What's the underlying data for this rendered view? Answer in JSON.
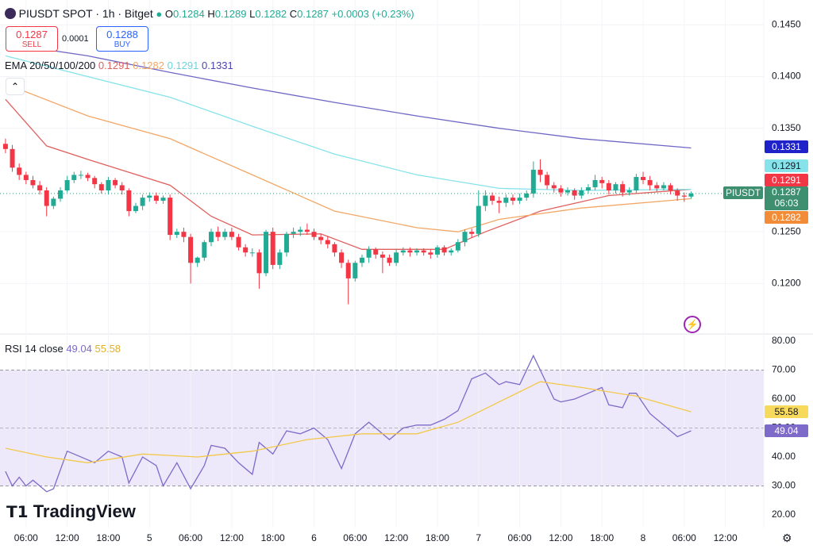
{
  "header": {
    "symbol": "PIUSDT SPOT · 1h · Bitget",
    "o_label": "O",
    "o": "0.1284",
    "h_label": "H",
    "h": "0.1289",
    "l_label": "L",
    "l": "0.1282",
    "c_label": "C",
    "c": "0.1287",
    "change": "+0.0003 (+0.23%)"
  },
  "trade": {
    "sell_price": "0.1287",
    "sell": "SELL",
    "spread": "0.0001",
    "buy_price": "0.1288",
    "buy": "BUY"
  },
  "ema_legend": {
    "label": "EMA 20/50/100/200",
    "values": [
      "0.1291",
      "0.1282",
      "0.1291",
      "0.1331"
    ]
  },
  "rsi_legend": {
    "label": "RSI 14 close",
    "values": [
      "49.04",
      "55.58"
    ]
  },
  "price_tag": {
    "symbol": "PIUSDT",
    "countdown": "06:03"
  },
  "brand": "TradingView",
  "chart_data": {
    "type": "candlestick",
    "up_color": "#22ab94",
    "down_color": "#f23645",
    "grid": true,
    "xlim": [
      -0.8,
      110.6
    ],
    "ylim": [
      0.1152,
      0.1474
    ],
    "last_price": 0.1287,
    "xticks": [
      {
        "value": 3,
        "label": "06:00"
      },
      {
        "value": 9,
        "label": "12:00"
      },
      {
        "value": 15,
        "label": "18:00"
      },
      {
        "value": 21,
        "label": "5"
      },
      {
        "value": 27,
        "label": "06:00"
      },
      {
        "value": 33,
        "label": "12:00"
      },
      {
        "value": 39,
        "label": "18:00"
      },
      {
        "value": 45,
        "label": "6"
      },
      {
        "value": 51,
        "label": "06:00"
      },
      {
        "value": 57,
        "label": "12:00"
      },
      {
        "value": 63,
        "label": "18:00"
      },
      {
        "value": 69,
        "label": "7"
      },
      {
        "value": 75,
        "label": "06:00"
      },
      {
        "value": 81,
        "label": "12:00"
      },
      {
        "value": 87,
        "label": "18:00"
      },
      {
        "value": 93,
        "label": "8"
      },
      {
        "value": 99,
        "label": "06:00"
      },
      {
        "value": 105,
        "label": "12:00"
      }
    ],
    "yticks": [
      {
        "value": 0.12,
        "label": "0.1200"
      },
      {
        "value": 0.125,
        "label": "0.1250"
      },
      {
        "value": 0.135,
        "label": "0.1350"
      },
      {
        "value": 0.14,
        "label": "0.1400"
      },
      {
        "value": 0.145,
        "label": "0.1450"
      }
    ],
    "candles": {
      "open": [
        0.1335,
        0.133,
        0.1312,
        0.1305,
        0.13,
        0.1295,
        0.129,
        0.1275,
        0.1282,
        0.129,
        0.13,
        0.1305,
        0.1305,
        0.1302,
        0.1296,
        0.129,
        0.13,
        0.1295,
        0.129,
        0.127,
        0.1275,
        0.1283,
        0.1285,
        0.128,
        0.1283,
        0.1247,
        0.125,
        0.1245,
        0.122,
        0.1225,
        0.124,
        0.125,
        0.1245,
        0.125,
        0.1245,
        0.1235,
        0.123,
        0.123,
        0.121,
        0.125,
        0.1218,
        0.123,
        0.1248,
        0.125,
        0.1252,
        0.125,
        0.1245,
        0.1242,
        0.1238,
        0.123,
        0.122,
        0.1205,
        0.122,
        0.1225,
        0.1233,
        0.1228,
        0.1225,
        0.122,
        0.123,
        0.1232,
        0.123,
        0.1232,
        0.123,
        0.1228,
        0.1235,
        0.123,
        0.1232,
        0.124,
        0.125,
        0.1248,
        0.1275,
        0.1285,
        0.128,
        0.1278,
        0.1283,
        0.128,
        0.1283,
        0.1287,
        0.131,
        0.1305,
        0.1295,
        0.1292,
        0.1288,
        0.129,
        0.1285,
        0.129,
        0.1293,
        0.13,
        0.1297,
        0.129,
        0.1296,
        0.1288,
        0.129,
        0.1303,
        0.13,
        0.1295,
        0.1292,
        0.1295,
        0.129,
        0.1285,
        0.1284
      ],
      "high": [
        0.134,
        0.1334,
        0.1316,
        0.1308,
        0.1304,
        0.1299,
        0.1293,
        0.1284,
        0.1293,
        0.1304,
        0.1308,
        0.1309,
        0.1307,
        0.1304,
        0.1298,
        0.1303,
        0.1302,
        0.1298,
        0.1292,
        0.1278,
        0.1286,
        0.1288,
        0.1288,
        0.1285,
        0.1286,
        0.1253,
        0.1254,
        0.1248,
        0.1226,
        0.1242,
        0.1253,
        0.1255,
        0.1253,
        0.1254,
        0.1248,
        0.1238,
        0.1234,
        0.1233,
        0.1252,
        0.1254,
        0.1233,
        0.125,
        0.1254,
        0.1255,
        0.1258,
        0.1253,
        0.1248,
        0.1246,
        0.124,
        0.1233,
        0.1223,
        0.1222,
        0.1228,
        0.1236,
        0.1235,
        0.1231,
        0.1228,
        0.1233,
        0.1235,
        0.1235,
        0.1234,
        0.1234,
        0.1233,
        0.1237,
        0.1237,
        0.1234,
        0.1243,
        0.1252,
        0.1253,
        0.129,
        0.129,
        0.1288,
        0.1284,
        0.1286,
        0.1286,
        0.1287,
        0.129,
        0.1318,
        0.132,
        0.1308,
        0.1298,
        0.1295,
        0.1293,
        0.1292,
        0.1293,
        0.1296,
        0.1305,
        0.1303,
        0.13,
        0.1298,
        0.1299,
        0.1293,
        0.1306,
        0.1308,
        0.1304,
        0.1298,
        0.1298,
        0.1297,
        0.1292,
        0.1288,
        0.1289
      ],
      "low": [
        0.1326,
        0.1308,
        0.13,
        0.1296,
        0.1292,
        0.1286,
        0.1265,
        0.1272,
        0.1279,
        0.1288,
        0.1297,
        0.1301,
        0.1299,
        0.1292,
        0.1287,
        0.1286,
        0.1292,
        0.1286,
        0.1265,
        0.1268,
        0.1271,
        0.1279,
        0.1277,
        0.1277,
        0.1242,
        0.1244,
        0.124,
        0.12,
        0.1216,
        0.1222,
        0.1236,
        0.1241,
        0.1242,
        0.1242,
        0.1232,
        0.1226,
        0.1226,
        0.1195,
        0.1207,
        0.1214,
        0.1214,
        0.1226,
        0.1244,
        0.1246,
        0.1247,
        0.1242,
        0.1238,
        0.1234,
        0.1226,
        0.1215,
        0.118,
        0.1202,
        0.1216,
        0.122,
        0.1224,
        0.121,
        0.1217,
        0.1217,
        0.1227,
        0.1226,
        0.1227,
        0.1227,
        0.1224,
        0.1225,
        0.1227,
        0.1227,
        0.123,
        0.1236,
        0.1244,
        0.1245,
        0.127,
        0.1276,
        0.1268,
        0.1274,
        0.1276,
        0.1277,
        0.128,
        0.1283,
        0.1298,
        0.1291,
        0.1288,
        0.1284,
        0.1285,
        0.1281,
        0.1282,
        0.1287,
        0.129,
        0.1292,
        0.1286,
        0.1287,
        0.1284,
        0.1285,
        0.1287,
        0.1296,
        0.129,
        0.1289,
        0.129,
        0.1286,
        0.128,
        0.1279,
        0.1282
      ],
      "close": [
        0.133,
        0.1312,
        0.1305,
        0.13,
        0.1295,
        0.129,
        0.1275,
        0.1282,
        0.129,
        0.13,
        0.1305,
        0.1305,
        0.1302,
        0.1296,
        0.129,
        0.13,
        0.1295,
        0.129,
        0.127,
        0.1275,
        0.1283,
        0.1285,
        0.128,
        0.1283,
        0.1247,
        0.125,
        0.1245,
        0.122,
        0.1225,
        0.124,
        0.125,
        0.1245,
        0.125,
        0.1245,
        0.1235,
        0.123,
        0.123,
        0.121,
        0.125,
        0.1218,
        0.123,
        0.1248,
        0.125,
        0.1252,
        0.125,
        0.1245,
        0.1242,
        0.1238,
        0.123,
        0.122,
        0.1205,
        0.122,
        0.1225,
        0.1233,
        0.1228,
        0.1225,
        0.122,
        0.123,
        0.1232,
        0.123,
        0.1232,
        0.123,
        0.1228,
        0.1235,
        0.123,
        0.1232,
        0.124,
        0.125,
        0.1248,
        0.1275,
        0.1285,
        0.128,
        0.1278,
        0.1283,
        0.128,
        0.1283,
        0.1287,
        0.131,
        0.1305,
        0.1295,
        0.1292,
        0.1288,
        0.129,
        0.1285,
        0.129,
        0.1293,
        0.13,
        0.1297,
        0.129,
        0.1296,
        0.1288,
        0.129,
        0.1303,
        0.13,
        0.1295,
        0.1292,
        0.1295,
        0.129,
        0.1285,
        0.1284,
        0.1287
      ]
    },
    "series": [
      {
        "name": "EMA 20",
        "color": "#e0605e",
        "x": [
          0,
          6,
          12,
          24,
          30,
          36,
          46,
          52,
          64,
          70,
          78,
          88,
          100
        ],
        "values": [
          0.1378,
          0.1333,
          0.132,
          0.1295,
          0.1265,
          0.1247,
          0.1248,
          0.1233,
          0.1233,
          0.125,
          0.127,
          0.1285,
          0.1291
        ]
      },
      {
        "name": "EMA 50",
        "color": "#f2a766",
        "x": [
          0,
          12,
          24,
          36,
          48,
          60,
          66,
          72,
          84,
          100
        ],
        "values": [
          0.1393,
          0.1362,
          0.134,
          0.1305,
          0.127,
          0.1254,
          0.125,
          0.1262,
          0.1273,
          0.1282
        ]
      },
      {
        "name": "EMA 100",
        "color": "#86e3ea",
        "x": [
          0,
          12,
          24,
          36,
          48,
          60,
          72,
          84,
          100
        ],
        "values": [
          0.142,
          0.14,
          0.138,
          0.1352,
          0.1325,
          0.1305,
          0.1292,
          0.129,
          0.1291
        ]
      },
      {
        "name": "EMA 200",
        "color": "#6f67c4",
        "x": [
          0,
          12,
          24,
          36,
          48,
          60,
          72,
          84,
          100
        ],
        "values": [
          0.1432,
          0.142,
          0.1404,
          0.1389,
          0.1375,
          0.1362,
          0.135,
          0.134,
          0.1331
        ]
      }
    ],
    "rsi": {
      "ylim": [
        15.6,
        82.2
      ],
      "band": [
        30,
        70
      ],
      "midline": 50,
      "band_color": "#ede9fa",
      "yticks": [
        {
          "value": 20,
          "label": "20.00"
        },
        {
          "value": 30,
          "label": "30.00"
        },
        {
          "value": 40,
          "label": "40.00"
        },
        {
          "value": 50,
          "label": "50.00"
        },
        {
          "value": 60,
          "label": "60.00"
        },
        {
          "value": 70,
          "label": "70.00"
        },
        {
          "value": 80,
          "label": "80.00"
        }
      ],
      "series": [
        {
          "name": "RSI",
          "color": "#7e6ac8",
          "x": [
            0,
            1,
            2,
            3,
            4,
            6,
            7,
            9,
            10,
            13,
            15,
            17,
            18,
            20,
            22,
            23,
            25,
            27,
            29,
            30,
            32,
            34,
            36,
            37,
            39,
            41,
            43,
            45,
            47,
            49,
            51,
            53,
            56,
            58,
            60,
            62,
            64,
            66,
            68,
            70,
            72,
            73,
            75,
            77,
            78,
            80,
            81,
            83,
            85,
            87,
            88,
            90,
            91,
            92,
            94,
            96,
            98,
            99,
            100
          ],
          "values": [
            35,
            30,
            33,
            30,
            32,
            28,
            29,
            42,
            41,
            38,
            42,
            40,
            31,
            40,
            37,
            30,
            38,
            29,
            37,
            44,
            43,
            38,
            34,
            45,
            41,
            49,
            48,
            50,
            46,
            36,
            48,
            52,
            46,
            50,
            51,
            51,
            53,
            56,
            67,
            69,
            65,
            66,
            65,
            75,
            70,
            60,
            59,
            60,
            62,
            64,
            58,
            57,
            62,
            62,
            55,
            51,
            47,
            48,
            49.04
          ]
        },
        {
          "name": "RSI MA",
          "color": "#f3c84a",
          "x": [
            0,
            6,
            12,
            20,
            28,
            36,
            44,
            52,
            60,
            66,
            72,
            78,
            84,
            92,
            100
          ],
          "values": [
            43,
            40,
            38,
            41,
            40,
            42,
            46,
            48,
            48,
            52,
            59,
            66,
            64,
            61,
            55.58
          ]
        }
      ]
    }
  }
}
